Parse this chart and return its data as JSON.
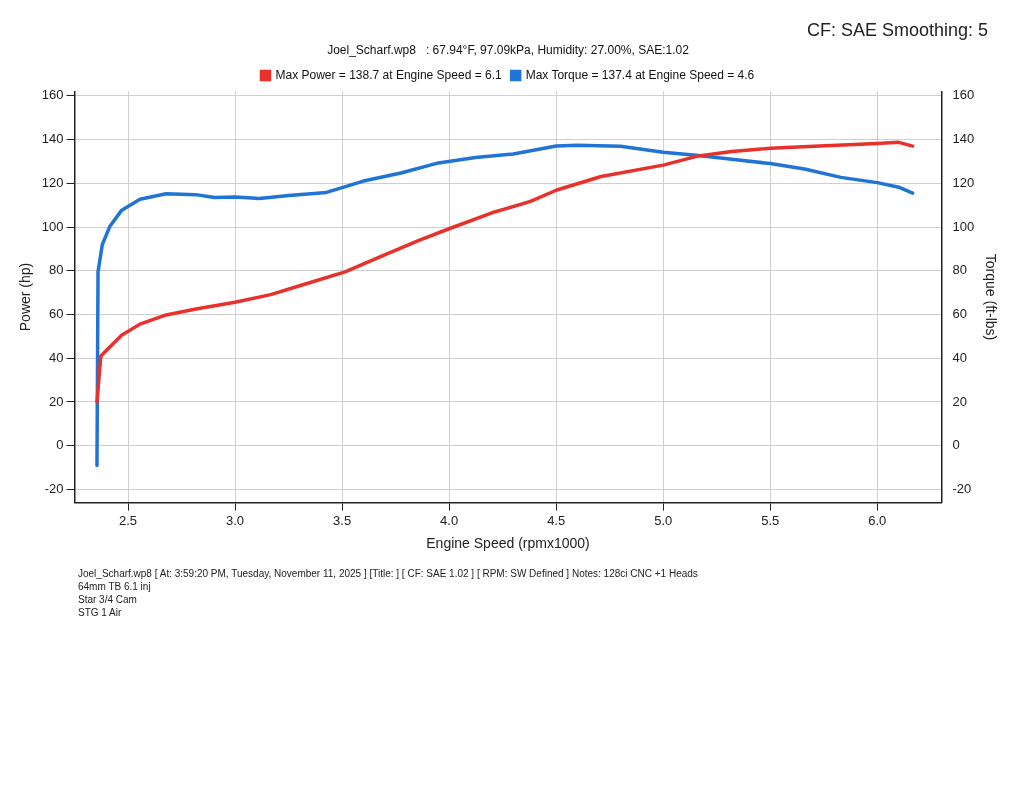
{
  "chart_data": {
    "type": "line",
    "xlabel": "Engine Speed (rpmx1000)",
    "ylabel": "Power (hp)",
    "y2label": "Torque (ft-lbs)",
    "legend_title": "Joel_Scharf.wp8   : 67.94°F, 97.09kPa, Humidity: 27.00%, SAE:1.02",
    "legend": "top",
    "grid": true,
    "marker": "none",
    "line_style": "solid",
    "xlim": [
      2.25,
      6.3
    ],
    "xticks": [
      2.5,
      {
        "value": 3,
        "label": "3.0"
      },
      3.5,
      {
        "value": 4,
        "label": "4.0"
      },
      4.5,
      {
        "value": 5,
        "label": "5.0"
      },
      5.5,
      {
        "value": 6,
        "label": "6.0"
      }
    ],
    "ylim": [
      -26,
      162
    ],
    "yticks": [
      -20,
      0,
      20,
      40,
      60,
      80,
      100,
      120,
      140,
      160
    ],
    "y2lim": [
      -26,
      162
    ],
    "y2ticks": [
      -20,
      0,
      20,
      40,
      60,
      80,
      100,
      120,
      140,
      160
    ],
    "series": [
      {
        "name": "Max Power = 138.7 at Engine Speed = 6.1",
        "color": "#e8312a",
        "x": [
          2.355,
          2.373,
          2.47,
          2.556,
          2.678,
          2.817,
          3.0,
          3.166,
          3.34,
          3.514,
          3.688,
          3.862,
          4.0,
          4.2,
          4.38,
          4.5,
          4.71,
          5.0,
          5.165,
          5.32,
          5.5,
          5.757,
          6.0,
          6.1,
          6.165
        ],
        "values": [
          20,
          41,
          50.5,
          55.6,
          59.8,
          62.5,
          65.6,
          69.1,
          74.3,
          79.5,
          86.8,
          94,
          99.2,
          106.5,
          111.7,
          116.8,
          123.1,
          128.3,
          132.5,
          134.5,
          136,
          137.2,
          138.2,
          138.7,
          137
        ]
      },
      {
        "name": "Max Torque = 137.4 at Engine Speed = 4.6",
        "color": "#1f74d6",
        "axis": "y2",
        "x": [
          2.355,
          2.36,
          2.38,
          2.415,
          2.469,
          2.556,
          2.678,
          2.817,
          2.904,
          3.0,
          3.113,
          3.252,
          3.427,
          3.6,
          3.775,
          3.95,
          4.124,
          4.3,
          4.5,
          4.6,
          4.8,
          5.0,
          5.165,
          5.32,
          5.5,
          5.66,
          5.83,
          6.0,
          6.1,
          6.165
        ],
        "values": [
          -9,
          79.5,
          92,
          100.2,
          107.5,
          112.7,
          115.2,
          114.8,
          113.5,
          113.7,
          113,
          114.4,
          115.8,
          121,
          124.7,
          129.3,
          131.8,
          133.4,
          137,
          137.4,
          136.9,
          134.2,
          132.7,
          131,
          129,
          126.5,
          122.7,
          120.3,
          118.2,
          115.5
        ]
      }
    ],
    "annotations": [
      "CF: SAE Smoothing: 5",
      "Joel_Scharf.wp8 [ At: 3:59:20 PM, Tuesday, November 11, 2025 ] [Title: ] [ CF: SAE 1.02 ] [ RPM: SW Defined ] Notes: 128ci CNC +1 Heads",
      "64mm TB 6.1 inj",
      "Star 3/4 Cam",
      "STG 1 Air"
    ]
  }
}
